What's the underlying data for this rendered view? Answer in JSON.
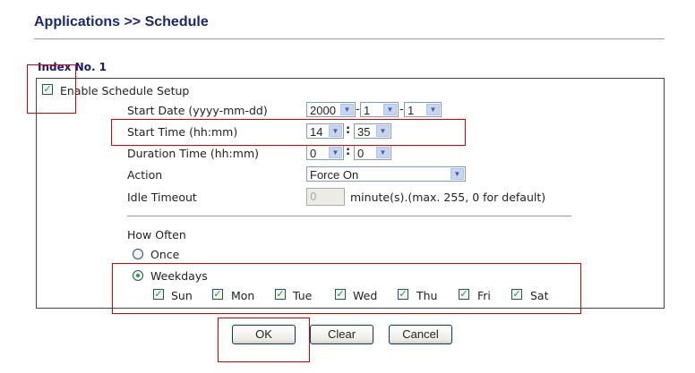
{
  "header": {
    "title": "Applications >> Schedule"
  },
  "index_label": "Index No. 1",
  "enable": {
    "label": "Enable Schedule Setup",
    "checked": true
  },
  "fields": {
    "start_date": {
      "label": "Start Date (yyyy-mm-dd)",
      "year": "2000",
      "month": "1",
      "day": "1"
    },
    "start_time": {
      "label": "Start Time (hh:mm)",
      "hour": "14",
      "minute": "35"
    },
    "duration": {
      "label": "Duration Time (hh:mm)",
      "hour": "0",
      "minute": "0"
    },
    "action": {
      "label": "Action",
      "value": "Force On"
    },
    "idle": {
      "label": "Idle Timeout",
      "value": "0",
      "suffix": "minute(s).(max. 255, 0 for default)"
    }
  },
  "date_sep": "-",
  "time_sep": ":",
  "how_often": {
    "label": "How Often",
    "once": "Once",
    "weekdays": "Weekdays",
    "selected": "Weekdays",
    "days": [
      {
        "label": "Sun",
        "checked": true
      },
      {
        "label": "Mon",
        "checked": true
      },
      {
        "label": "Tue",
        "checked": true
      },
      {
        "label": "Wed",
        "checked": true
      },
      {
        "label": "Thu",
        "checked": true
      },
      {
        "label": "Fri",
        "checked": true
      },
      {
        "label": "Sat",
        "checked": true
      }
    ]
  },
  "buttons": {
    "ok": "OK",
    "clear": "Clear",
    "cancel": "Cancel"
  },
  "colors": {
    "title": "#1a2a6e",
    "highlight": "#dd0000",
    "check": "#21a121"
  }
}
